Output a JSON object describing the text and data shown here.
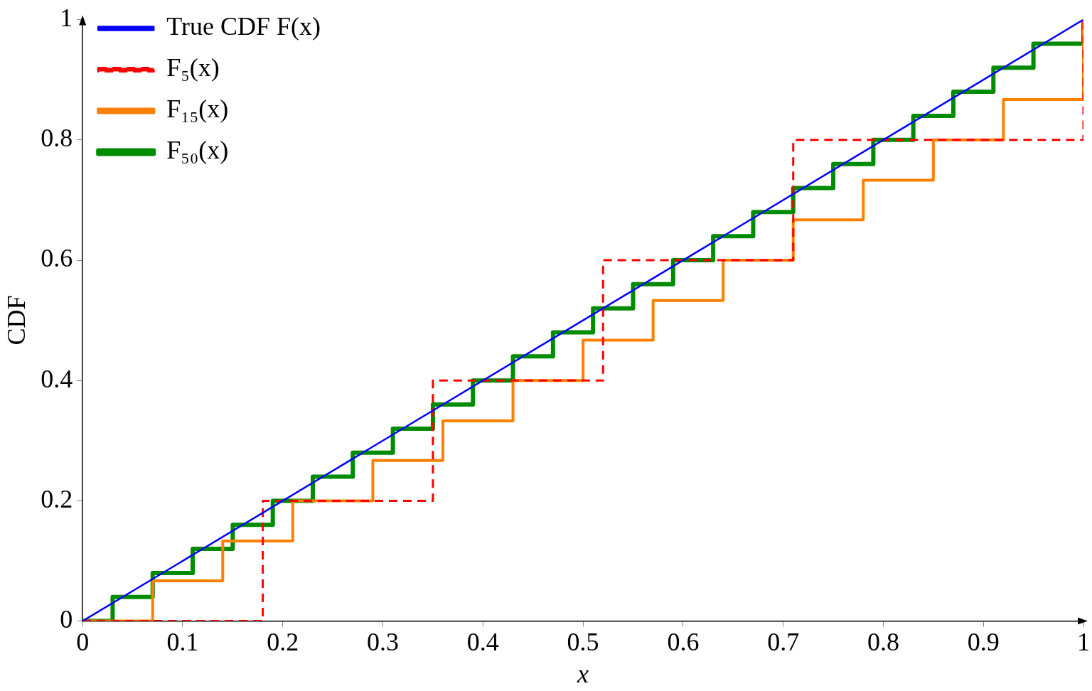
{
  "chart_data": {
    "type": "line",
    "xlabel": "x",
    "ylabel": "CDF",
    "xlim": [
      0,
      1
    ],
    "ylim": [
      0,
      1
    ],
    "xticks": [
      0,
      0.1,
      0.2,
      0.3,
      0.4,
      0.5,
      0.6,
      0.7,
      0.8,
      0.9,
      1
    ],
    "yticks": [
      0,
      0.2,
      0.4,
      0.6,
      0.8,
      1
    ],
    "grid": false,
    "legend": "top left",
    "marker": "none",
    "series": [
      {
        "name": "True CDF F(x)",
        "color": "#0000ff",
        "type": "line",
        "x": [
          0,
          1
        ],
        "values": [
          0,
          1
        ]
      },
      {
        "name": "F₅(x)",
        "color": "#ff0000",
        "type": "step",
        "line_style": "dashed",
        "x": [
          0,
          0.18,
          0.35,
          0.52,
          0.71,
          1
        ],
        "values": [
          0,
          0.2,
          0.4,
          0.6,
          0.8,
          1
        ]
      },
      {
        "name": "F₁₅(x)",
        "color": "#ff8000",
        "type": "step",
        "x": [
          0,
          0.07,
          0.14,
          0.21,
          0.29,
          0.36,
          0.43,
          0.5,
          0.57,
          0.64,
          0.71,
          0.78,
          0.85,
          0.92,
          1
        ],
        "values": [
          0,
          0.067,
          0.133,
          0.2,
          0.267,
          0.333,
          0.4,
          0.467,
          0.533,
          0.6,
          0.667,
          0.733,
          0.8,
          0.867,
          1
        ]
      },
      {
        "name": "F₅₀(x)",
        "color": "#008c00",
        "type": "step",
        "x": [
          0,
          0.03,
          0.07,
          0.11,
          0.15,
          0.19,
          0.23,
          0.27,
          0.31,
          0.35,
          0.39,
          0.43,
          0.47,
          0.51,
          0.55,
          0.59,
          0.63,
          0.67,
          0.71,
          0.75,
          0.79,
          0.83,
          0.87,
          0.91,
          0.95,
          1
        ],
        "values": [
          0,
          0.04,
          0.08,
          0.12,
          0.16,
          0.2,
          0.24,
          0.28,
          0.32,
          0.36,
          0.4,
          0.44,
          0.48,
          0.52,
          0.56,
          0.6,
          0.64,
          0.68,
          0.72,
          0.76,
          0.8,
          0.84,
          0.88,
          0.92,
          0.96,
          1
        ]
      }
    ]
  }
}
